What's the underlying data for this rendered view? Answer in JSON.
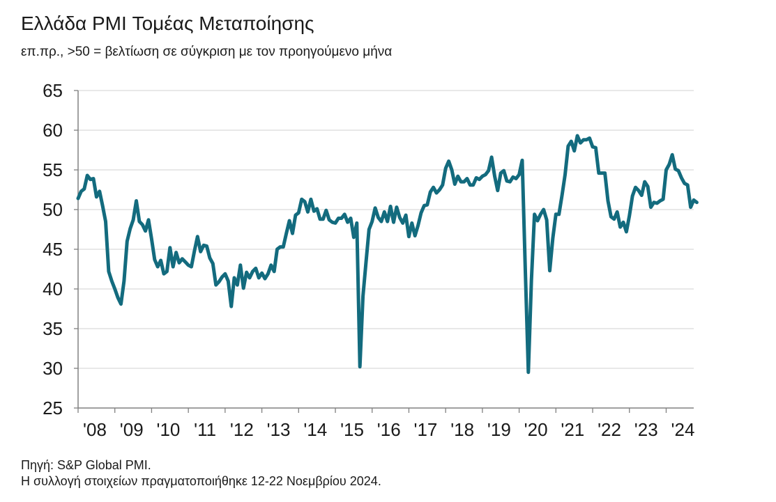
{
  "title": "Ελλάδα PMI Τομέας Μεταποίησης",
  "subtitle": "επ.πρ., >50 = βελτίωση σε σύγκριση με τον προηγούμενο μήνα",
  "footer": {
    "source": "Πηγή: S&P Global PMI.",
    "collection": "Η συλλογή στοιχείων πραγματοποιήθηκε 12-22 Νοεμβρίου 2024."
  },
  "colors": {
    "line": "#136b7e",
    "grid": "#d9d9d9",
    "axis": "#808080"
  },
  "chart_data": {
    "type": "line",
    "title": "Ελλάδα PMI Τομέας Μεταποίησης",
    "subtitle": "επ.πρ., >50 = βελτίωση σε σύγκριση με τον προηγούμενο μήνα",
    "ylim": [
      25,
      65
    ],
    "yticks": [
      25,
      30,
      35,
      40,
      45,
      50,
      55,
      60,
      65
    ],
    "xlim": [
      "2008-01",
      "2024-10"
    ],
    "xticks": [
      {
        "label": "'08",
        "date": "2008-01"
      },
      {
        "label": "'09",
        "date": "2009-01"
      },
      {
        "label": "'10",
        "date": "2010-01"
      },
      {
        "label": "'11",
        "date": "2011-01"
      },
      {
        "label": "'12",
        "date": "2012-01"
      },
      {
        "label": "'13",
        "date": "2013-01"
      },
      {
        "label": "'14",
        "date": "2014-01"
      },
      {
        "label": "'15",
        "date": "2015-01"
      },
      {
        "label": "'16",
        "date": "2016-01"
      },
      {
        "label": "'17",
        "date": "2017-01"
      },
      {
        "label": "'18",
        "date": "2018-01"
      },
      {
        "label": "'19",
        "date": "2019-01"
      },
      {
        "label": "'20",
        "date": "2020-01"
      },
      {
        "label": "'21",
        "date": "2021-01"
      },
      {
        "label": "'22",
        "date": "2022-01"
      },
      {
        "label": "'23",
        "date": "2023-01"
      },
      {
        "label": "'24",
        "date": "2024-01"
      }
    ],
    "grid": true,
    "series": [
      {
        "points": [
          [
            "2008-01",
            51.4
          ],
          [
            "2008-02",
            52.3
          ],
          [
            "2008-03",
            52.6
          ],
          [
            "2008-04",
            54.3
          ],
          [
            "2008-05",
            53.8
          ],
          [
            "2008-06",
            53.9
          ],
          [
            "2008-07",
            51.6
          ],
          [
            "2008-08",
            52.3
          ],
          [
            "2008-09",
            50.5
          ],
          [
            "2008-10",
            48.5
          ],
          [
            "2008-11",
            42.2
          ],
          [
            "2008-12",
            41.0
          ],
          [
            "2009-01",
            40.0
          ],
          [
            "2009-02",
            38.9
          ],
          [
            "2009-03",
            38.1
          ],
          [
            "2009-04",
            41.0
          ],
          [
            "2009-05",
            46.0
          ],
          [
            "2009-06",
            47.6
          ],
          [
            "2009-07",
            48.7
          ],
          [
            "2009-08",
            51.1
          ],
          [
            "2009-09",
            48.5
          ],
          [
            "2009-10",
            48.1
          ],
          [
            "2009-11",
            47.3
          ],
          [
            "2009-12",
            48.7
          ],
          [
            "2010-01",
            46.3
          ],
          [
            "2010-02",
            43.7
          ],
          [
            "2010-03",
            42.8
          ],
          [
            "2010-04",
            43.6
          ],
          [
            "2010-05",
            41.9
          ],
          [
            "2010-06",
            42.2
          ],
          [
            "2010-07",
            45.2
          ],
          [
            "2010-08",
            42.8
          ],
          [
            "2010-09",
            44.6
          ],
          [
            "2010-10",
            43.3
          ],
          [
            "2010-11",
            43.8
          ],
          [
            "2010-12",
            43.4
          ],
          [
            "2011-01",
            43.0
          ],
          [
            "2011-02",
            42.8
          ],
          [
            "2011-03",
            44.8
          ],
          [
            "2011-04",
            46.6
          ],
          [
            "2011-05",
            44.7
          ],
          [
            "2011-06",
            45.5
          ],
          [
            "2011-07",
            45.4
          ],
          [
            "2011-08",
            43.9
          ],
          [
            "2011-09",
            43.2
          ],
          [
            "2011-10",
            40.5
          ],
          [
            "2011-11",
            40.9
          ],
          [
            "2011-12",
            41.5
          ],
          [
            "2012-01",
            41.9
          ],
          [
            "2012-02",
            41.0
          ],
          [
            "2012-03",
            37.8
          ],
          [
            "2012-04",
            41.4
          ],
          [
            "2012-05",
            40.5
          ],
          [
            "2012-06",
            43.0
          ],
          [
            "2012-07",
            40.1
          ],
          [
            "2012-08",
            42.1
          ],
          [
            "2012-09",
            41.4
          ],
          [
            "2012-10",
            42.2
          ],
          [
            "2012-11",
            42.6
          ],
          [
            "2012-12",
            41.4
          ],
          [
            "2013-01",
            42.0
          ],
          [
            "2013-02",
            41.3
          ],
          [
            "2013-03",
            41.9
          ],
          [
            "2013-04",
            43.0
          ],
          [
            "2013-05",
            42.2
          ],
          [
            "2013-06",
            45.0
          ],
          [
            "2013-07",
            45.3
          ],
          [
            "2013-08",
            45.3
          ],
          [
            "2013-09",
            47.0
          ],
          [
            "2013-10",
            48.6
          ],
          [
            "2013-11",
            47.0
          ],
          [
            "2013-12",
            49.3
          ],
          [
            "2014-01",
            49.6
          ],
          [
            "2014-02",
            51.3
          ],
          [
            "2014-03",
            51.0
          ],
          [
            "2014-04",
            49.7
          ],
          [
            "2014-05",
            51.3
          ],
          [
            "2014-06",
            49.8
          ],
          [
            "2014-07",
            50.1
          ],
          [
            "2014-08",
            48.8
          ],
          [
            "2014-09",
            48.8
          ],
          [
            "2014-10",
            49.9
          ],
          [
            "2014-11",
            48.7
          ],
          [
            "2014-12",
            48.4
          ],
          [
            "2015-01",
            48.3
          ],
          [
            "2015-02",
            48.9
          ],
          [
            "2015-03",
            48.9
          ],
          [
            "2015-04",
            49.4
          ],
          [
            "2015-05",
            48.4
          ],
          [
            "2015-06",
            48.9
          ],
          [
            "2015-07",
            46.5
          ],
          [
            "2015-08",
            48.3
          ],
          [
            "2015-09",
            30.2
          ],
          [
            "2015-10",
            39.1
          ],
          [
            "2015-11",
            43.3
          ],
          [
            "2015-12",
            47.5
          ],
          [
            "2016-01",
            48.5
          ],
          [
            "2016-02",
            50.2
          ],
          [
            "2016-03",
            49.0
          ],
          [
            "2016-04",
            48.5
          ],
          [
            "2016-05",
            49.7
          ],
          [
            "2016-06",
            48.5
          ],
          [
            "2016-07",
            50.4
          ],
          [
            "2016-08",
            48.4
          ],
          [
            "2016-09",
            50.3
          ],
          [
            "2016-10",
            49.0
          ],
          [
            "2016-11",
            48.3
          ],
          [
            "2016-12",
            49.3
          ],
          [
            "2017-01",
            46.6
          ],
          [
            "2017-02",
            48.3
          ],
          [
            "2017-03",
            46.7
          ],
          [
            "2017-04",
            48.0
          ],
          [
            "2017-05",
            49.6
          ],
          [
            "2017-06",
            50.5
          ],
          [
            "2017-07",
            50.6
          ],
          [
            "2017-08",
            52.2
          ],
          [
            "2017-09",
            52.8
          ],
          [
            "2017-10",
            52.1
          ],
          [
            "2017-11",
            52.5
          ],
          [
            "2017-12",
            53.1
          ],
          [
            "2018-01",
            55.2
          ],
          [
            "2018-02",
            56.1
          ],
          [
            "2018-03",
            55.0
          ],
          [
            "2018-04",
            53.2
          ],
          [
            "2018-05",
            54.2
          ],
          [
            "2018-06",
            53.5
          ],
          [
            "2018-07",
            53.5
          ],
          [
            "2018-08",
            53.9
          ],
          [
            "2018-09",
            53.1
          ],
          [
            "2018-10",
            53.1
          ],
          [
            "2018-11",
            54.0
          ],
          [
            "2018-12",
            53.8
          ],
          [
            "2019-01",
            54.2
          ],
          [
            "2019-02",
            54.4
          ],
          [
            "2019-03",
            54.9
          ],
          [
            "2019-04",
            56.6
          ],
          [
            "2019-05",
            54.2
          ],
          [
            "2019-06",
            52.4
          ],
          [
            "2019-07",
            54.6
          ],
          [
            "2019-08",
            54.9
          ],
          [
            "2019-09",
            53.6
          ],
          [
            "2019-10",
            53.5
          ],
          [
            "2019-11",
            54.1
          ],
          [
            "2019-12",
            53.9
          ],
          [
            "2020-01",
            54.4
          ],
          [
            "2020-02",
            56.2
          ],
          [
            "2020-03",
            42.5
          ],
          [
            "2020-04",
            29.5
          ],
          [
            "2020-05",
            41.1
          ],
          [
            "2020-06",
            49.4
          ],
          [
            "2020-07",
            48.6
          ],
          [
            "2020-08",
            49.4
          ],
          [
            "2020-09",
            50.0
          ],
          [
            "2020-10",
            48.7
          ],
          [
            "2020-11",
            42.3
          ],
          [
            "2020-12",
            46.4
          ],
          [
            "2021-01",
            49.4
          ],
          [
            "2021-02",
            49.4
          ],
          [
            "2021-03",
            51.8
          ],
          [
            "2021-04",
            54.4
          ],
          [
            "2021-05",
            58.0
          ],
          [
            "2021-06",
            58.6
          ],
          [
            "2021-07",
            57.4
          ],
          [
            "2021-08",
            59.3
          ],
          [
            "2021-09",
            58.4
          ],
          [
            "2021-10",
            58.8
          ],
          [
            "2021-11",
            58.8
          ],
          [
            "2021-12",
            59.0
          ],
          [
            "2022-01",
            57.9
          ],
          [
            "2022-02",
            57.8
          ],
          [
            "2022-03",
            54.6
          ],
          [
            "2022-04",
            54.6
          ],
          [
            "2022-05",
            54.6
          ],
          [
            "2022-06",
            51.1
          ],
          [
            "2022-07",
            49.1
          ],
          [
            "2022-08",
            48.8
          ],
          [
            "2022-09",
            49.7
          ],
          [
            "2022-10",
            47.8
          ],
          [
            "2022-11",
            48.4
          ],
          [
            "2022-12",
            47.2
          ],
          [
            "2023-01",
            49.2
          ],
          [
            "2023-02",
            51.7
          ],
          [
            "2023-03",
            52.8
          ],
          [
            "2023-04",
            52.4
          ],
          [
            "2023-05",
            51.8
          ],
          [
            "2023-06",
            53.5
          ],
          [
            "2023-07",
            52.9
          ],
          [
            "2023-08",
            50.3
          ],
          [
            "2023-09",
            50.9
          ],
          [
            "2023-10",
            50.8
          ],
          [
            "2023-11",
            51.1
          ],
          [
            "2023-12",
            51.3
          ],
          [
            "2024-01",
            55.0
          ],
          [
            "2024-02",
            55.7
          ],
          [
            "2024-03",
            56.9
          ],
          [
            "2024-04",
            55.1
          ],
          [
            "2024-05",
            54.9
          ],
          [
            "2024-06",
            54.0
          ],
          [
            "2024-07",
            53.3
          ],
          [
            "2024-08",
            53.1
          ],
          [
            "2024-09",
            50.3
          ],
          [
            "2024-10",
            51.2
          ],
          [
            "2024-11",
            50.9
          ]
        ]
      }
    ]
  }
}
